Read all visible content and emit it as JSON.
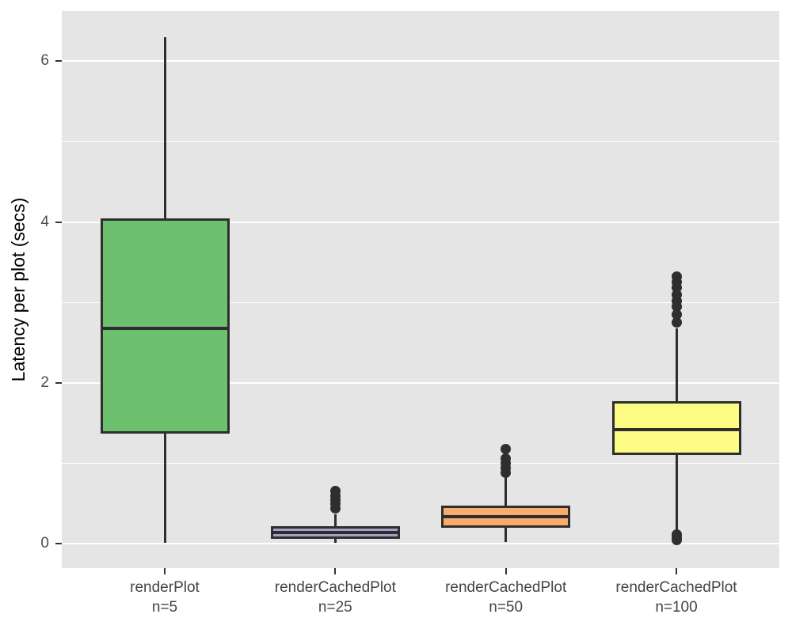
{
  "figure": {
    "panel_background": "#E5E5E5",
    "gridline_color": "#FFFFFF",
    "box_stroke_color": "#2E2E2E",
    "axis_text_color": "#4D4D4D",
    "axis_title_color": "#000000"
  },
  "chart_data": {
    "type": "boxplot",
    "title": "",
    "xlabel": "",
    "ylabel": "Latency per plot (secs)",
    "ylim": [
      -0.3,
      6.62
    ],
    "yticks_major": [
      0,
      2,
      4,
      6
    ],
    "yticks_minor": [
      1,
      3,
      5
    ],
    "grid": "horizontal major+minor, white on gray panel",
    "legend": "none",
    "categories": [
      "renderPlot",
      "renderCachedPlot",
      "renderCachedPlot",
      "renderCachedPlot"
    ],
    "sublabels": [
      "n=5",
      "n=25",
      "n=50",
      "n=100"
    ],
    "series": [
      {
        "name": "renderPlot n=5",
        "fill": "#6DC06D",
        "whisker_low": 0.01,
        "q1": 1.37,
        "median": 2.68,
        "q3": 4.04,
        "whisker_high": 6.3,
        "outliers": []
      },
      {
        "name": "renderCachedPlot n=25",
        "fill": "#A89FC8",
        "whisker_low": 0.01,
        "q1": 0.06,
        "median": 0.14,
        "q3": 0.22,
        "whisker_high": 0.37,
        "outliers": [
          0.44,
          0.5,
          0.55,
          0.6,
          0.66
        ]
      },
      {
        "name": "renderCachedPlot n=50",
        "fill": "#F8AC6C",
        "whisker_low": 0.02,
        "q1": 0.2,
        "median": 0.34,
        "q3": 0.48,
        "whisker_high": 0.83,
        "outliers": [
          0.88,
          0.94,
          1.0,
          1.06,
          1.18
        ]
      },
      {
        "name": "renderCachedPlot n=100",
        "fill": "#FCFC85",
        "whisker_low": 0.16,
        "q1": 1.11,
        "median": 1.42,
        "q3": 1.77,
        "whisker_high": 2.68,
        "outliers": [
          0.05,
          0.08,
          0.12,
          2.75,
          2.85,
          2.95,
          3.02,
          3.1,
          3.18,
          3.25,
          3.32
        ]
      }
    ]
  }
}
